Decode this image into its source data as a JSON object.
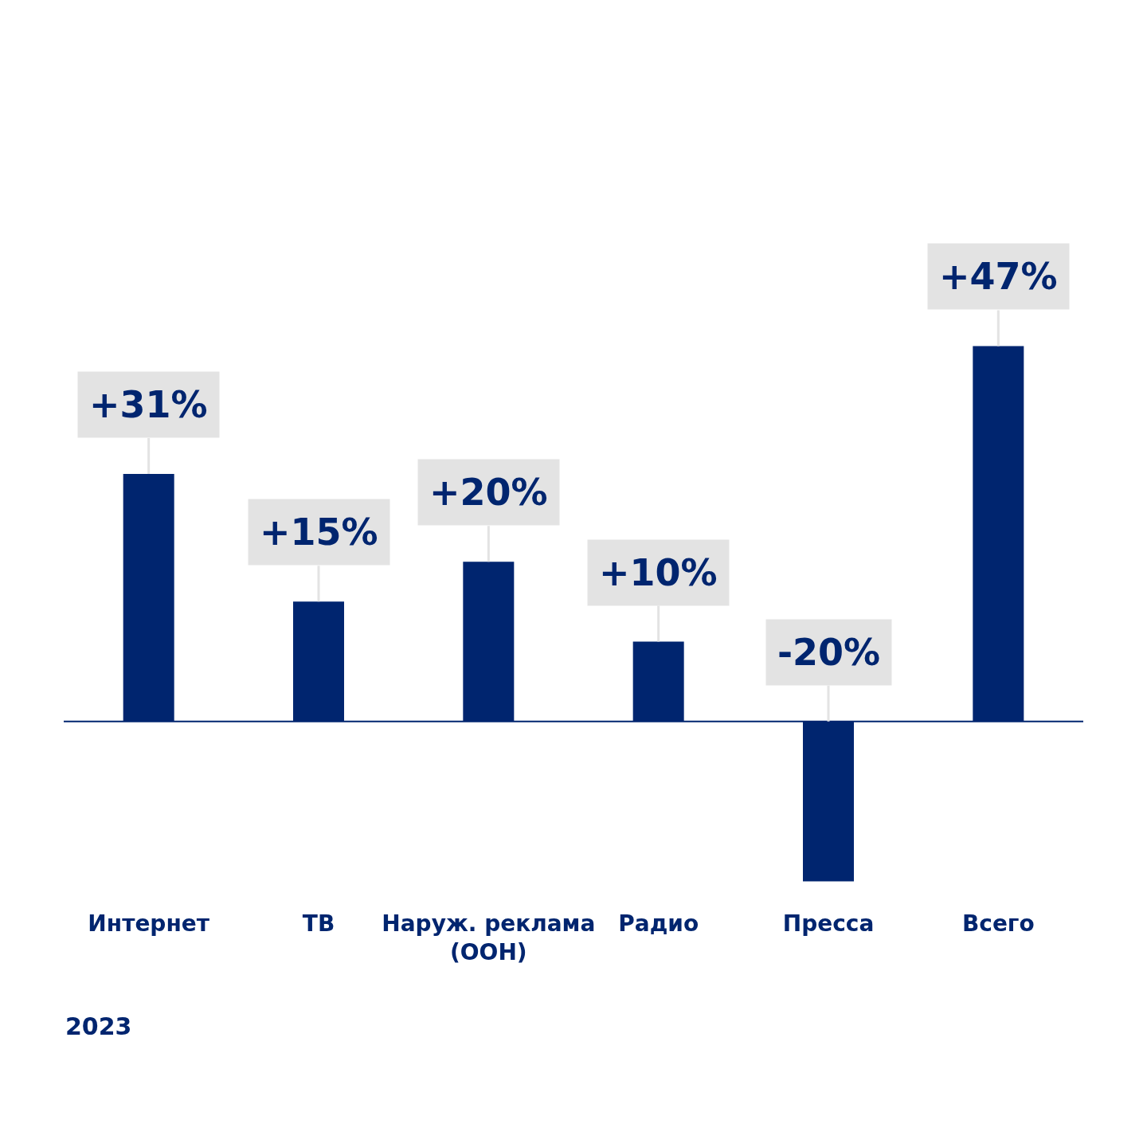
{
  "chart_data": {
    "type": "bar",
    "categories": [
      "Интернет",
      "ТВ",
      "Наруж. реклама\n(OOH)",
      "Радио",
      "Пресса",
      "Всего"
    ],
    "values": [
      31,
      15,
      20,
      10,
      -20,
      47
    ],
    "value_labels": [
      "+31%",
      "+15%",
      "+20%",
      "+10%",
      "-20%",
      "+47%"
    ],
    "color": "#00256f",
    "ref_lines": [
      {
        "axis": "y",
        "value": 0,
        "color": "#00256f"
      }
    ],
    "annotations": [
      "2023"
    ]
  }
}
